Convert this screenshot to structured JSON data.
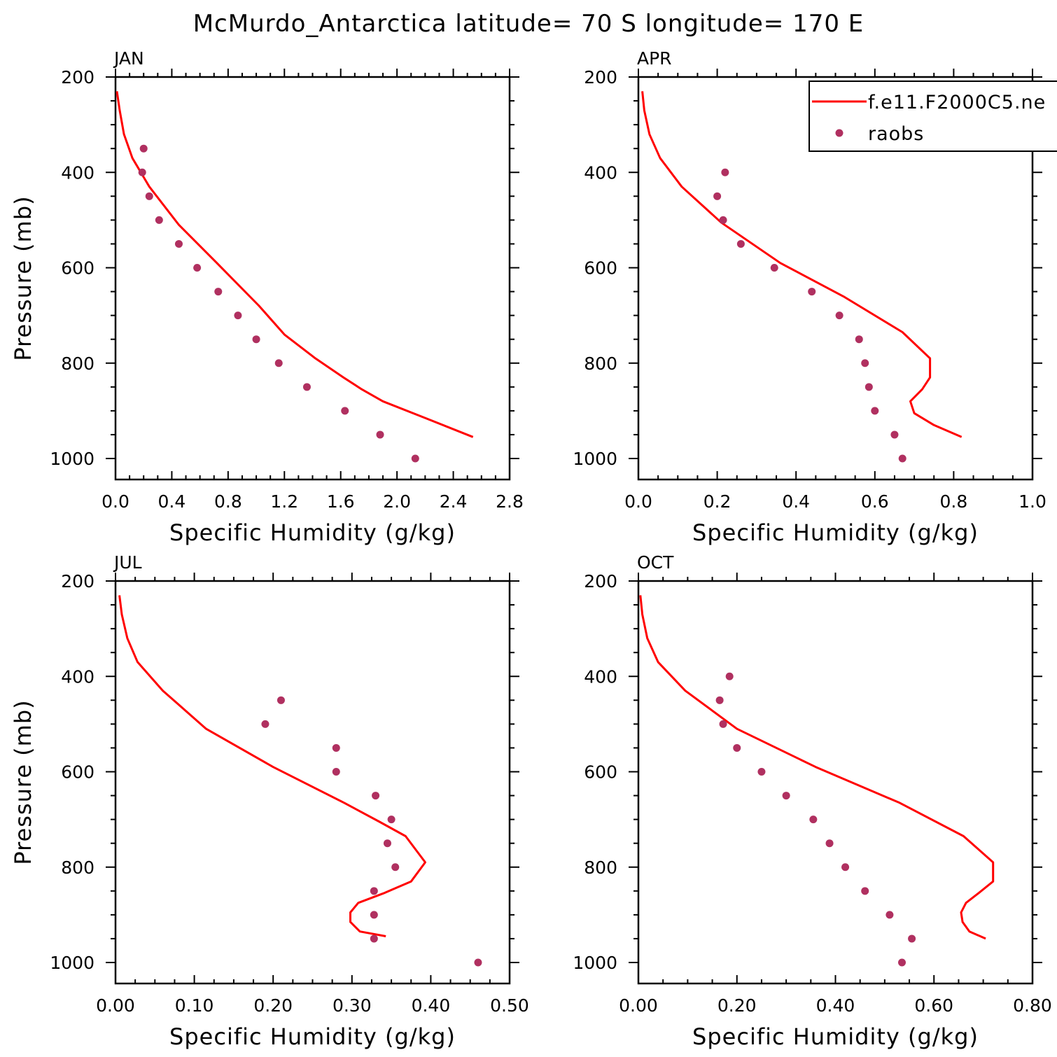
{
  "title": "McMurdo_Antarctica  latitude= 70 S longitude= 170 E",
  "legend": {
    "items": [
      {
        "label": "f.e11.F2000C5.ne",
        "kind": "line"
      },
      {
        "label": "raobs",
        "kind": "marker"
      }
    ]
  },
  "colors": {
    "model": "#ff0000",
    "obs": "#b03060",
    "axes": "#000000"
  },
  "chart_data": [
    {
      "type": "line",
      "panel_title": "JAN",
      "xlabel": "Specific Humidity (g/kg)",
      "ylabel": "Pressure (mb)",
      "xlim": [
        0.0,
        2.8
      ],
      "ylim": [
        200,
        1000
      ],
      "y_inverted": true,
      "xticks": [
        "0.0",
        "0.4",
        "0.8",
        "1.2",
        "1.6",
        "2.0",
        "2.4",
        "2.8"
      ],
      "yticks": [
        "200",
        "400",
        "600",
        "800",
        "1000"
      ],
      "series": [
        {
          "name": "f.e11.F2000C5.ne",
          "style": "line",
          "x": [
            0.01,
            0.03,
            0.06,
            0.12,
            0.24,
            0.45,
            0.72,
            1.02,
            1.2,
            1.42,
            1.62,
            1.75,
            1.9,
            2.2,
            2.54
          ],
          "y": [
            230,
            270,
            320,
            370,
            430,
            510,
            590,
            680,
            740,
            790,
            830,
            855,
            880,
            915,
            955
          ]
        },
        {
          "name": "raobs",
          "style": "markers",
          "x": [
            0.2,
            0.19,
            0.24,
            0.31,
            0.45,
            0.58,
            0.73,
            0.87,
            1.0,
            1.16,
            1.36,
            1.63,
            1.88,
            2.13
          ],
          "y": [
            350,
            400,
            450,
            500,
            550,
            600,
            650,
            700,
            750,
            800,
            850,
            900,
            950,
            1000
          ]
        }
      ]
    },
    {
      "type": "line",
      "panel_title": "APR",
      "xlabel": "Specific Humidity (g/kg)",
      "ylabel": "",
      "xlim": [
        0.0,
        1.0
      ],
      "ylim": [
        200,
        1000
      ],
      "y_inverted": true,
      "xticks": [
        "0.0",
        "0.2",
        "0.4",
        "0.6",
        "0.8",
        "1.0"
      ],
      "yticks": [
        "200",
        "400",
        "600",
        "800",
        "1000"
      ],
      "series": [
        {
          "name": "f.e11.F2000C5.ne",
          "style": "line",
          "x": [
            0.01,
            0.015,
            0.028,
            0.055,
            0.11,
            0.21,
            0.36,
            0.52,
            0.67,
            0.74,
            0.74,
            0.72,
            0.69,
            0.7,
            0.75,
            0.82
          ],
          "y": [
            230,
            270,
            320,
            370,
            430,
            505,
            590,
            660,
            735,
            790,
            830,
            855,
            880,
            905,
            930,
            955
          ]
        },
        {
          "name": "raobs",
          "style": "markers",
          "x": [
            0.22,
            0.2,
            0.215,
            0.26,
            0.345,
            0.44,
            0.51,
            0.56,
            0.575,
            0.585,
            0.6,
            0.65,
            0.67
          ],
          "y": [
            400,
            450,
            500,
            550,
            600,
            650,
            700,
            750,
            800,
            850,
            900,
            950,
            1000
          ]
        }
      ]
    },
    {
      "type": "line",
      "panel_title": "JUL",
      "xlabel": "Specific Humidity (g/kg)",
      "ylabel": "Pressure (mb)",
      "xlim": [
        0.0,
        0.5
      ],
      "ylim": [
        200,
        1000
      ],
      "y_inverted": true,
      "xticks": [
        "0.00",
        "0.10",
        "0.20",
        "0.30",
        "0.40",
        "0.50"
      ],
      "yticks": [
        "200",
        "400",
        "600",
        "800",
        "1000"
      ],
      "series": [
        {
          "name": "f.e11.F2000C5.ne",
          "style": "line",
          "x": [
            0.005,
            0.008,
            0.015,
            0.028,
            0.06,
            0.115,
            0.2,
            0.29,
            0.335,
            0.368,
            0.393,
            0.375,
            0.34,
            0.308,
            0.298,
            0.298,
            0.31,
            0.343
          ],
          "y": [
            230,
            270,
            320,
            370,
            430,
            510,
            590,
            665,
            705,
            735,
            790,
            830,
            855,
            875,
            895,
            915,
            935,
            945
          ]
        },
        {
          "name": "raobs",
          "style": "markers",
          "x": [
            0.21,
            0.19,
            0.28,
            0.28,
            0.33,
            0.35,
            0.345,
            0.355,
            0.328,
            0.328,
            0.328,
            0.46
          ],
          "y": [
            450,
            500,
            550,
            600,
            650,
            700,
            750,
            800,
            850,
            900,
            950,
            1000
          ]
        }
      ]
    },
    {
      "type": "line",
      "panel_title": "OCT",
      "xlabel": "Specific Humidity (g/kg)",
      "ylabel": "",
      "xlim": [
        0.0,
        0.8
      ],
      "ylim": [
        200,
        1000
      ],
      "y_inverted": true,
      "xticks": [
        "0.00",
        "0.20",
        "0.40",
        "0.60",
        "0.80"
      ],
      "yticks": [
        "200",
        "400",
        "600",
        "800",
        "1000"
      ],
      "series": [
        {
          "name": "f.e11.F2000C5.ne",
          "style": "line",
          "x": [
            0.004,
            0.008,
            0.018,
            0.04,
            0.095,
            0.2,
            0.36,
            0.53,
            0.66,
            0.72,
            0.72,
            0.69,
            0.665,
            0.655,
            0.658,
            0.672,
            0.705
          ],
          "y": [
            230,
            270,
            320,
            370,
            430,
            510,
            590,
            665,
            735,
            790,
            830,
            855,
            875,
            895,
            915,
            935,
            950
          ]
        },
        {
          "name": "raobs",
          "style": "markers",
          "x": [
            0.185,
            0.165,
            0.172,
            0.2,
            0.25,
            0.3,
            0.355,
            0.388,
            0.42,
            0.46,
            0.51,
            0.555,
            0.535
          ],
          "y": [
            400,
            450,
            500,
            550,
            600,
            650,
            700,
            750,
            800,
            850,
            900,
            950,
            1000
          ]
        }
      ]
    }
  ]
}
